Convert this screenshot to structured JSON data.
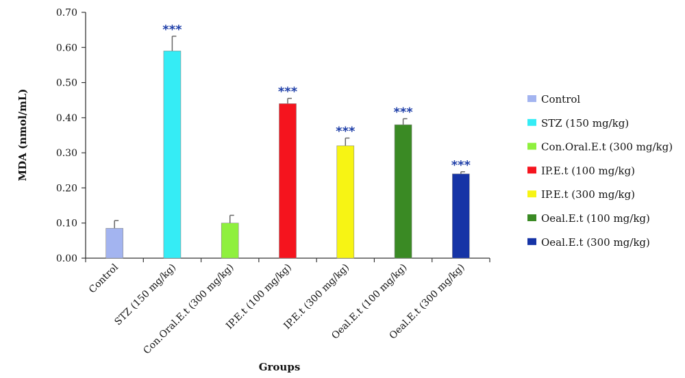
{
  "chart_data": {
    "type": "bar",
    "xlabel": "Groups",
    "ylabel": "MDA (nmol/mL)",
    "ylim": [
      0,
      0.7
    ],
    "yticks": [
      "0.00",
      "0.10",
      "0.20",
      "0.30",
      "0.40",
      "0.50",
      "0.60",
      "0.70"
    ],
    "categories": [
      "Control",
      "STZ (150 mg/kg)",
      "Con.Oral.E.t (300 mg/kg)",
      "IP.E.t (100 mg/kg)",
      "IP.E.t (300 mg/kg)",
      "Oeal.E.t (100 mg/kg)",
      "Oeal.E.t (300 mg/kg)"
    ],
    "values": [
      0.085,
      0.59,
      0.1,
      0.44,
      0.32,
      0.38,
      0.24
    ],
    "errors": [
      0.022,
      0.042,
      0.022,
      0.015,
      0.022,
      0.017,
      0.006
    ],
    "significance": [
      "",
      "***",
      "",
      "***",
      "***",
      "***",
      "***"
    ],
    "colors": [
      "#a3b4f0",
      "#35ecf5",
      "#8ff03e",
      "#f5141e",
      "#f7f414",
      "#3a8a24",
      "#1634a6"
    ],
    "legend": {
      "position": "right",
      "entries": [
        "Control",
        "STZ (150 mg/kg)",
        "Con.Oral.E.t (300 mg/kg)",
        "IP.E.t (100 mg/kg)",
        "IP.E.t (300 mg/kg)",
        "Oeal.E.t (100 mg/kg)",
        "Oeal.E.t (300 mg/kg)"
      ]
    },
    "grid": false
  }
}
